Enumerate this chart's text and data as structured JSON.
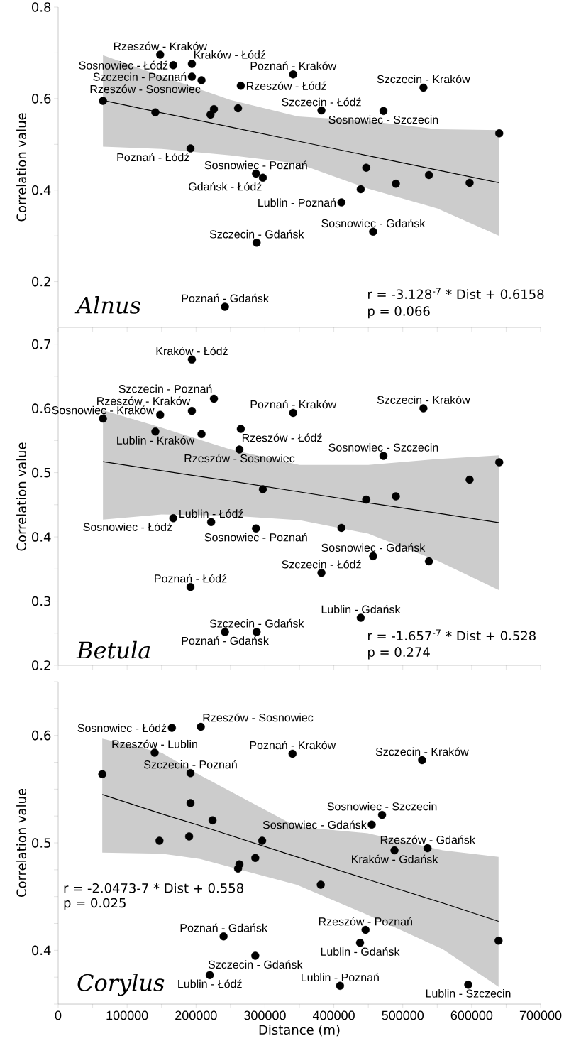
{
  "chart_data": [
    {
      "type": "scatter",
      "ylabel": "Correlation value",
      "marker": "circle",
      "tick_labels": "y",
      "xlim": [
        0,
        700000
      ],
      "xticks": [
        0,
        {
          "value": 50000,
          "label": null
        },
        100000,
        {
          "value": 150000,
          "label": null
        },
        200000,
        {
          "value": 250000,
          "label": null
        },
        300000,
        {
          "value": 350000,
          "label": null
        },
        400000,
        {
          "value": 450000,
          "label": null
        },
        500000,
        {
          "value": 550000,
          "label": null
        },
        600000,
        {
          "value": 650000,
          "label": null
        },
        700000
      ],
      "ylim": [
        0.1,
        0.8
      ],
      "yticks": [
        0.2,
        {
          "value": 0.3,
          "label": null
        },
        0.4,
        {
          "value": 0.5,
          "label": null
        },
        0.6,
        {
          "value": 0.7,
          "label": null
        },
        0.8
      ],
      "series": [
        {
          "color": "#000000",
          "x": [
            65000,
            141000,
            148000,
            167000,
            194000,
            194000,
            208000,
            265000,
            226000,
            221000,
            261000,
            192000,
            287000,
            297000,
            288000,
            242000,
            341000,
            530000,
            382000,
            472000,
            640000,
            447000,
            490000,
            538000,
            597000,
            439000,
            411000,
            457000
          ],
          "values": [
            0.595,
            0.57,
            0.696,
            0.673,
            0.676,
            0.648,
            0.64,
            0.628,
            0.577,
            0.565,
            0.579,
            0.491,
            0.436,
            0.427,
            0.285,
            0.145,
            0.653,
            0.624,
            0.574,
            0.573,
            0.524,
            0.449,
            0.414,
            0.433,
            0.416,
            0.402,
            0.373,
            0.309
          ]
        },
        {
          "type": "line",
          "color": "#000000",
          "marker": "none",
          "x": [
            65000,
            150000,
            250000,
            348000,
            450000,
            550000,
            640000
          ],
          "values": [
            0.596,
            0.569,
            0.538,
            0.507,
            0.475,
            0.444,
            0.416
          ],
          "upper": [
            0.695,
            0.649,
            0.597,
            0.561,
            0.551,
            0.533,
            0.531
          ],
          "lower": [
            0.495,
            0.49,
            0.476,
            0.458,
            0.403,
            0.36,
            0.3
          ]
        }
      ],
      "annotations": [
        {
          "text": "Rzeszów - Kraków",
          "x": 148000,
          "y": 0.696
        },
        {
          "text": "Sosnowiec - Łódź",
          "x": 167000,
          "y": 0.673
        },
        {
          "text": "Kraków - Łódź",
          "x": 194000,
          "y": 0.676
        },
        {
          "text": "Szczecin - Poznań",
          "x": 194000,
          "y": 0.648
        },
        {
          "text": "Rzeszów - Sosnowiec",
          "x": 208000,
          "y": 0.64
        },
        {
          "text": "Rzeszów - Łódź",
          "x": 265000,
          "y": 0.628
        },
        {
          "text": "Poznań - Kraków",
          "x": 341000,
          "y": 0.653
        },
        {
          "text": "Szczecin - Kraków",
          "x": 530000,
          "y": 0.624
        },
        {
          "text": "Szczecin - Łódź",
          "x": 382000,
          "y": 0.574
        },
        {
          "text": "Sosnowiec - Szczecin",
          "x": 472000,
          "y": 0.573
        },
        {
          "text": "Poznań - Łódź",
          "x": 192000,
          "y": 0.491
        },
        {
          "text": "Sosnowiec - Poznań",
          "x": 287000,
          "y": 0.436
        },
        {
          "text": "Gdańsk - Łódź",
          "x": 297000,
          "y": 0.427
        },
        {
          "text": "Lublin - Poznań",
          "x": 411000,
          "y": 0.373
        },
        {
          "text": "Szczecin - Gdańsk",
          "x": 288000,
          "y": 0.285
        },
        {
          "text": "Sosnowiec - Gdańsk",
          "x": 457000,
          "y": 0.309
        },
        {
          "text": "Poznań - Gdańsk",
          "x": 242000,
          "y": 0.145
        },
        "r = -3.128$^{-7}$ * Dist + 0.6158",
        "p = 0.066",
        "Alnus"
      ]
    },
    {
      "type": "scatter",
      "ylabel": "Correlation value",
      "marker": "circle",
      "tick_labels": "y",
      "xlim": [
        0,
        700000
      ],
      "xticks": [
        0,
        {
          "value": 50000,
          "label": null
        },
        100000,
        {
          "value": 150000,
          "label": null
        },
        200000,
        {
          "value": 250000,
          "label": null
        },
        300000,
        {
          "value": 350000,
          "label": null
        },
        400000,
        {
          "value": 450000,
          "label": null
        },
        500000,
        {
          "value": 550000,
          "label": null
        },
        600000,
        {
          "value": 650000,
          "label": null
        },
        700000
      ],
      "ylim": [
        0.2,
        0.725
      ],
      "yticks": [
        0.2,
        {
          "value": 0.25,
          "label": null
        },
        0.3,
        {
          "value": 0.35,
          "label": null
        },
        0.4,
        {
          "value": 0.45,
          "label": null
        },
        0.5,
        {
          "value": 0.55,
          "label": null
        },
        0.6,
        {
          "value": 0.65,
          "label": null
        },
        0.7
      ],
      "series": [
        {
          "color": "#000000",
          "x": [
            65000,
            148000,
            194000,
            194000,
            226000,
            141000,
            208000,
            265000,
            263000,
            297000,
            167000,
            222000,
            287000,
            192000,
            242000,
            288000,
            341000,
            530000,
            472000,
            640000,
            597000,
            490000,
            447000,
            411000,
            457000,
            538000,
            382000,
            439000
          ],
          "values": [
            0.584,
            0.59,
            0.596,
            0.676,
            0.615,
            0.564,
            0.56,
            0.568,
            0.536,
            0.474,
            0.429,
            0.423,
            0.413,
            0.322,
            0.252,
            0.252,
            0.593,
            0.6,
            0.526,
            0.516,
            0.489,
            0.463,
            0.458,
            0.414,
            0.37,
            0.362,
            0.344,
            0.274
          ]
        },
        {
          "type": "line",
          "color": "#000000",
          "marker": "none",
          "x": [
            65000,
            150000,
            250000,
            350000,
            450000,
            550000,
            640000
          ],
          "values": [
            0.517,
            0.503,
            0.487,
            0.47,
            0.453,
            0.437,
            0.422
          ],
          "upper": [
            0.597,
            0.57,
            0.536,
            0.512,
            0.512,
            0.521,
            0.527
          ],
          "lower": [
            0.427,
            0.435,
            0.433,
            0.426,
            0.405,
            0.363,
            0.317
          ]
        }
      ],
      "annotations": [
        {
          "text": "Kraków - Łódź",
          "x": 194000,
          "y": 0.676
        },
        {
          "text": "Szczecin - Poznań",
          "x": 226000,
          "y": 0.615
        },
        {
          "text": "Sosnowiec - Kraków",
          "x": 65000,
          "y": 0.584
        },
        {
          "text": "Rzeszów - Kraków",
          "x": 194000,
          "y": 0.596
        },
        {
          "text": "Poznań - Kraków",
          "x": 341000,
          "y": 0.593
        },
        {
          "text": "Szczecin - Kraków",
          "x": 530000,
          "y": 0.6
        },
        {
          "text": "Lublin - Kraków",
          "x": 141000,
          "y": 0.564
        },
        {
          "text": "Rzeszów - Łódź",
          "x": 265000,
          "y": 0.568
        },
        {
          "text": "Rzeszów - Sosnowiec",
          "x": 263000,
          "y": 0.536
        },
        {
          "text": "Sosnowiec - Szczecin",
          "x": 472000,
          "y": 0.526
        },
        {
          "text": "Lublin - Łódź",
          "x": 222000,
          "y": 0.423
        },
        {
          "text": "Sosnowiec - Łódź",
          "x": 167000,
          "y": 0.429
        },
        {
          "text": "Sosnowiec - Poznań",
          "x": 287000,
          "y": 0.413
        },
        {
          "text": "Sosnowiec - Gdańsk",
          "x": 457000,
          "y": 0.37
        },
        {
          "text": "Szczecin - Łódź",
          "x": 382000,
          "y": 0.344
        },
        {
          "text": "Poznań - Łódź",
          "x": 192000,
          "y": 0.322
        },
        {
          "text": "Szczecin - Gdańsk",
          "x": 288000,
          "y": 0.252
        },
        {
          "text": "Poznań - Gdańsk",
          "x": 242000,
          "y": 0.252
        },
        {
          "text": "Lublin - Gdańsk",
          "x": 439000,
          "y": 0.274
        },
        "r = -1.657$^{-7}$ * Dist + 0.528",
        "p = 0.274",
        "Betula"
      ]
    },
    {
      "type": "scatter",
      "ylabel": "Correlation value",
      "xlabel": "Distance (m)",
      "marker": "circle",
      "xlim": [
        0,
        700000
      ],
      "xticks": [
        0,
        {
          "value": 50000,
          "label": null
        },
        100000,
        {
          "value": 150000,
          "label": null
        },
        200000,
        {
          "value": 250000,
          "label": null
        },
        300000,
        {
          "value": 350000,
          "label": null
        },
        400000,
        {
          "value": 450000,
          "label": null
        },
        500000,
        {
          "value": 550000,
          "label": null
        },
        600000,
        {
          "value": 650000,
          "label": null
        },
        700000
      ],
      "ylim": [
        0.35,
        0.65
      ],
      "yticks": [
        {
          "value": 0.35,
          "label": null
        },
        {
          "value": 0.375,
          "label": null
        },
        0.4,
        {
          "value": 0.425,
          "label": null
        },
        {
          "value": 0.45,
          "label": null
        },
        {
          "value": 0.475,
          "label": null
        },
        0.5,
        {
          "value": 0.525,
          "label": null
        },
        {
          "value": 0.55,
          "label": null
        },
        {
          "value": 0.575,
          "label": null
        },
        0.6,
        {
          "value": 0.625,
          "label": null
        },
        {
          "value": 0.65,
          "label": null
        }
      ],
      "series": [
        {
          "color": "#000000",
          "x": [
            64000,
            165000,
            207000,
            140000,
            192000,
            192000,
            224000,
            147000,
            190000,
            296000,
            286000,
            263000,
            261000,
            240000,
            286000,
            220000,
            340000,
            528000,
            470000,
            455000,
            488000,
            536000,
            381000,
            446000,
            438000,
            639000,
            409000,
            595000
          ],
          "values": [
            0.564,
            0.607,
            0.608,
            0.584,
            0.565,
            0.537,
            0.521,
            0.502,
            0.506,
            0.502,
            0.486,
            0.48,
            0.476,
            0.413,
            0.395,
            0.377,
            0.583,
            0.577,
            0.526,
            0.517,
            0.493,
            0.495,
            0.461,
            0.419,
            0.407,
            0.409,
            0.367,
            0.368
          ]
        },
        {
          "type": "line",
          "color": "#000000",
          "marker": "none",
          "x": [
            64000,
            150000,
            206000,
            346000,
            449000,
            558000,
            639000
          ],
          "values": [
            0.545,
            0.527,
            0.516,
            0.487,
            0.466,
            0.444,
            0.427
          ],
          "upper": [
            0.597,
            0.584,
            0.563,
            0.515,
            0.509,
            0.493,
            0.487
          ],
          "lower": [
            0.491,
            0.49,
            0.485,
            0.461,
            0.433,
            0.401,
            0.366
          ]
        }
      ],
      "annotations": [
        {
          "text": "Sosnowiec - Łódź",
          "x": 165000,
          "y": 0.607
        },
        {
          "text": "Rzeszów -  Sosnowiec",
          "x": 207000,
          "y": 0.608
        },
        {
          "text": "Rzeszów - Lublin",
          "x": 140000,
          "y": 0.584
        },
        {
          "text": "Poznań - Kraków",
          "x": 340000,
          "y": 0.583
        },
        {
          "text": "Szczecin - Kraków",
          "x": 528000,
          "y": 0.577
        },
        {
          "text": "Szczecin - Poznań",
          "x": 192000,
          "y": 0.565
        },
        {
          "text": "Sosnowiec - Szczecin",
          "x": 470000,
          "y": 0.526
        },
        {
          "text": "Sosnowiec - Gdańsk",
          "x": 455000,
          "y": 0.517
        },
        {
          "text": "Rzeszów - Gdańsk",
          "x": 536000,
          "y": 0.495
        },
        {
          "text": "Kraków - Gdańsk",
          "x": 488000,
          "y": 0.493
        },
        {
          "text": "Rzeszów - Poznań",
          "x": 446000,
          "y": 0.419
        },
        {
          "text": "Lublin - Gdańsk",
          "x": 438000,
          "y": 0.407
        },
        {
          "text": "Lublin - Poznań",
          "x": 409000,
          "y": 0.367
        },
        {
          "text": "Lublin - Szczecin",
          "x": 595000,
          "y": 0.368
        },
        {
          "text": "Poznań - Gdańsk",
          "x": 240000,
          "y": 0.413
        },
        {
          "text": "Szczecin - Gdańsk",
          "x": 286000,
          "y": 0.395
        },
        {
          "text": "Lublin - Łódź",
          "x": 220000,
          "y": 0.377
        },
        "r = -2.0473-7 * Dist + 0.558",
        "p = 0.025",
        "Corylus"
      ]
    }
  ]
}
